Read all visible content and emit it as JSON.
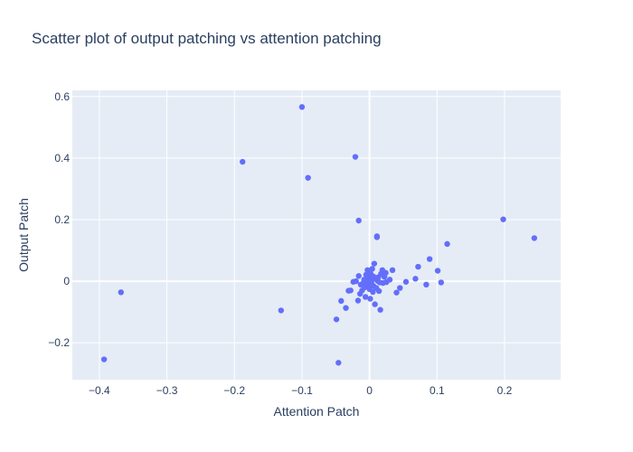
{
  "chart_data": {
    "type": "scatter",
    "title": "Scatter plot of output patching vs attention patching",
    "xlabel": "Attention Patch",
    "ylabel": "Output Patch",
    "xlim": [
      -0.44,
      0.283
    ],
    "ylim": [
      -0.32,
      0.62
    ],
    "x_ticks": [
      -0.4,
      -0.3,
      -0.2,
      -0.1,
      0,
      0.1,
      0.2
    ],
    "x_tick_labels": [
      "−0.4",
      "−0.3",
      "−0.2",
      "−0.1",
      "0",
      "0.1",
      "0.2"
    ],
    "y_ticks": [
      -0.2,
      0,
      0.2,
      0.4,
      0.6
    ],
    "y_tick_labels": [
      "−0.2",
      "0",
      "0.2",
      "0.4",
      "0.6"
    ],
    "grid": true,
    "colors": {
      "marker": "#636efa",
      "plot_bg": "#e5ecf6",
      "grid": "#ffffff",
      "text": "#2a3f5f"
    },
    "points": [
      [
        -0.393,
        -0.254
      ],
      [
        -0.368,
        -0.036
      ],
      [
        -0.188,
        0.388
      ],
      [
        -0.131,
        -0.095
      ],
      [
        -0.1,
        0.566
      ],
      [
        -0.091,
        0.336
      ],
      [
        -0.046,
        -0.265
      ],
      [
        -0.049,
        -0.124
      ],
      [
        -0.042,
        -0.064
      ],
      [
        -0.035,
        -0.087
      ],
      [
        -0.031,
        -0.031
      ],
      [
        -0.028,
        -0.03
      ],
      [
        -0.024,
        -0.002
      ],
      [
        -0.02,
        0.0
      ],
      [
        -0.021,
        0.404
      ],
      [
        -0.016,
        0.197
      ],
      [
        -0.017,
        -0.063
      ],
      [
        -0.016,
        0.017
      ],
      [
        -0.014,
        -0.041
      ],
      [
        -0.013,
        -0.011
      ],
      [
        -0.011,
        -0.03
      ],
      [
        -0.009,
        -0.005
      ],
      [
        -0.008,
        0.005
      ],
      [
        -0.007,
        -0.02
      ],
      [
        -0.006,
        -0.051
      ],
      [
        -0.005,
        0.021
      ],
      [
        -0.004,
        -0.002
      ],
      [
        -0.003,
        0.036
      ],
      [
        -0.002,
        -0.012
      ],
      [
        -0.001,
        0.01
      ],
      [
        0.0,
        -0.026
      ],
      [
        0.001,
        -0.057
      ],
      [
        0.001,
        0.002
      ],
      [
        0.002,
        0.023
      ],
      [
        0.003,
        -0.009
      ],
      [
        0.004,
        0.04
      ],
      [
        0.004,
        0.004
      ],
      [
        0.005,
        -0.035
      ],
      [
        0.006,
        0.015
      ],
      [
        0.006,
        -0.016
      ],
      [
        0.007,
        0.057
      ],
      [
        0.008,
        -0.075
      ],
      [
        0.009,
        0.008
      ],
      [
        0.01,
        -0.022
      ],
      [
        0.011,
        0.146
      ],
      [
        0.011,
        0.143
      ],
      [
        0.012,
        0.001
      ],
      [
        0.013,
        0.013
      ],
      [
        0.014,
        -0.032
      ],
      [
        0.015,
        -0.004
      ],
      [
        0.016,
        -0.093
      ],
      [
        0.017,
        0.024
      ],
      [
        0.019,
        0.036
      ],
      [
        0.02,
        -0.006
      ],
      [
        0.022,
        0.014
      ],
      [
        0.024,
        0.027
      ],
      [
        0.025,
        -0.003
      ],
      [
        0.03,
        0.005
      ],
      [
        0.034,
        0.036
      ],
      [
        0.04,
        -0.037
      ],
      [
        0.045,
        -0.022
      ],
      [
        0.054,
        -0.002
      ],
      [
        0.068,
        0.008
      ],
      [
        0.072,
        0.047
      ],
      [
        0.084,
        -0.011
      ],
      [
        0.089,
        0.072
      ],
      [
        0.101,
        0.034
      ],
      [
        0.106,
        -0.004
      ],
      [
        0.115,
        0.121
      ],
      [
        0.198,
        0.201
      ],
      [
        0.244,
        0.14
      ]
    ]
  }
}
